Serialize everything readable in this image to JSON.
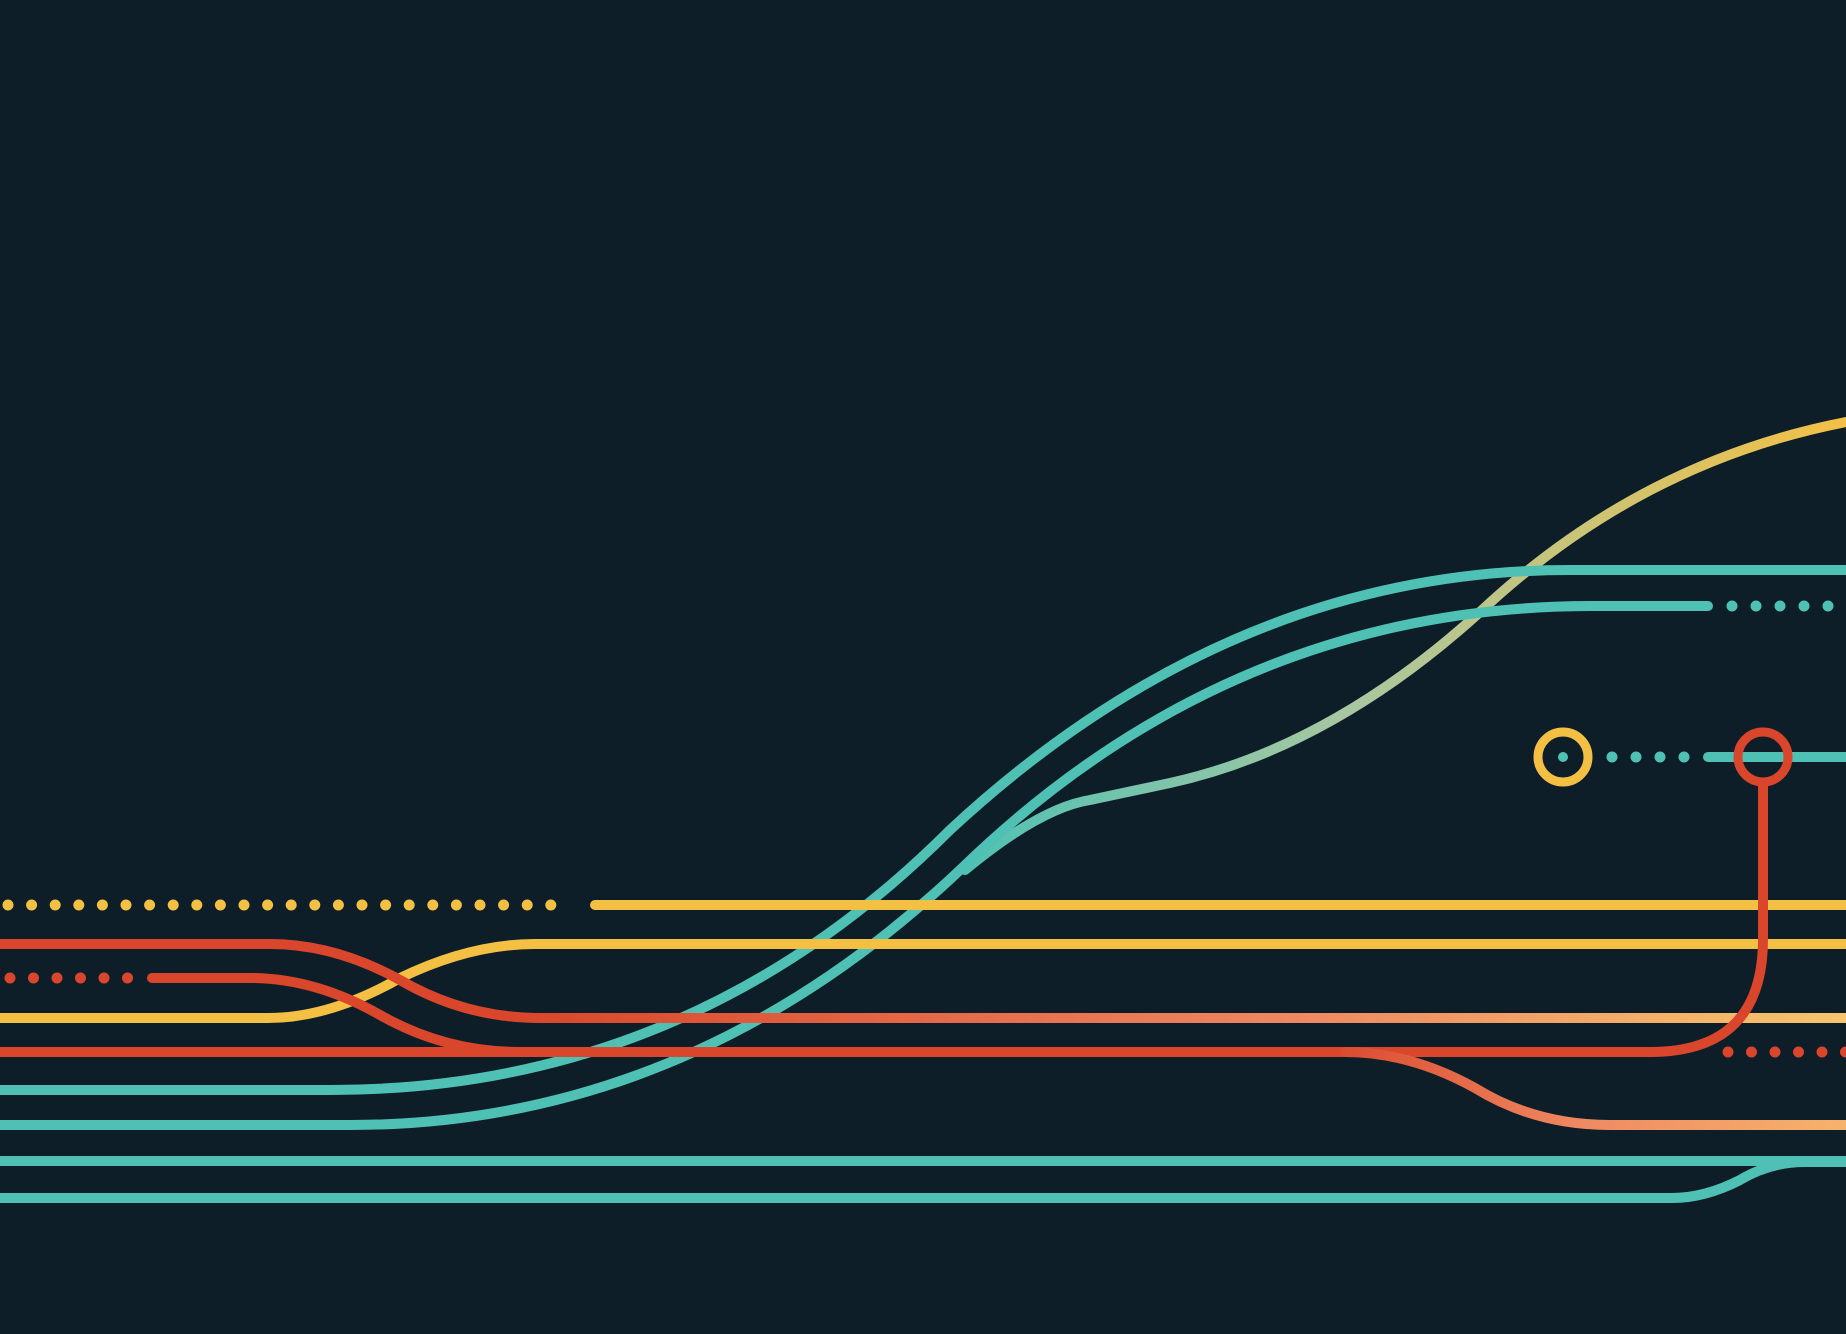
{
  "artwork": {
    "name": "circuit-line-illustration",
    "colors": {
      "background": "#0e1e29",
      "teal": "#4fc1b4",
      "yellow": "#f3c044",
      "red": "#d9462c",
      "salmon": "#ef8a62",
      "peach": "#f6b36c"
    }
  }
}
